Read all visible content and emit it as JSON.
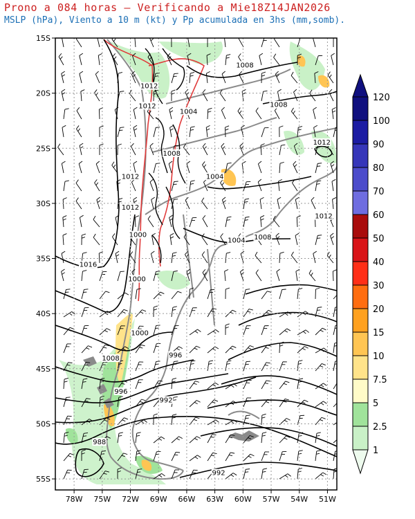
{
  "header": {
    "title": "Prono a 084 horas — Verificando a Mie18Z14JAN2026",
    "subtitle": "MSLP (hPa), Viento a 10 m (kt) y Pp acumulada en 3hs (mm,somb)."
  },
  "map": {
    "lat_labels": [
      "15S",
      "20S",
      "25S",
      "30S",
      "35S",
      "40S",
      "45S",
      "50S",
      "55S"
    ],
    "lon_labels": [
      "78W",
      "75W",
      "72W",
      "69W",
      "66W",
      "63W",
      "60W",
      "57W",
      "54W",
      "51W"
    ],
    "isobar_labels": [
      {
        "text": "1008",
        "lon": -59.8,
        "lat": -17.6
      },
      {
        "text": "1012",
        "lon": -70.0,
        "lat": -19.5
      },
      {
        "text": "1008",
        "lon": -56.2,
        "lat": -21.2
      },
      {
        "text": "1012",
        "lon": -70.2,
        "lat": -21.3
      },
      {
        "text": "1004",
        "lon": -65.8,
        "lat": -21.8
      },
      {
        "text": "1012",
        "lon": -51.6,
        "lat": -24.6
      },
      {
        "text": "1008",
        "lon": -67.6,
        "lat": -25.6
      },
      {
        "text": "1004",
        "lon": -63.0,
        "lat": -27.7
      },
      {
        "text": "1012",
        "lon": -72.0,
        "lat": -27.7
      },
      {
        "text": "1012",
        "lon": -72.0,
        "lat": -30.5
      },
      {
        "text": "1012",
        "lon": -51.4,
        "lat": -31.3
      },
      {
        "text": "1000",
        "lon": -71.2,
        "lat": -33.0
      },
      {
        "text": "1008",
        "lon": -57.9,
        "lat": -33.2
      },
      {
        "text": "1004",
        "lon": -60.7,
        "lat": -33.5
      },
      {
        "text": "1016",
        "lon": -76.5,
        "lat": -35.7
      },
      {
        "text": "1000",
        "lon": -71.3,
        "lat": -37.0
      },
      {
        "text": "1000",
        "lon": -71.0,
        "lat": -41.9
      },
      {
        "text": "996",
        "lon": -67.2,
        "lat": -43.9
      },
      {
        "text": "1008",
        "lon": -74.1,
        "lat": -44.2
      },
      {
        "text": "996",
        "lon": -73.0,
        "lat": -47.2
      },
      {
        "text": "992",
        "lon": -68.2,
        "lat": -48.0
      },
      {
        "text": "988",
        "lon": -75.3,
        "lat": -51.8
      },
      {
        "text": "992",
        "lon": -62.6,
        "lat": -54.6
      }
    ]
  },
  "colorbar": {
    "labels": [
      "1",
      "2.5",
      "5",
      "7.5",
      "10",
      "15",
      "20",
      "30",
      "40",
      "50",
      "60",
      "70",
      "80",
      "90",
      "100",
      "120"
    ],
    "colors": [
      "#eefbee",
      "#c9f1c7",
      "#a0e39b",
      "#fffbc8",
      "#ffe38a",
      "#ffc553",
      "#ffa11f",
      "#ff6d10",
      "#ff2f17",
      "#d91418",
      "#a90c0c",
      "#6f6de0",
      "#4c4ccb",
      "#3636b9",
      "#1c1ca3",
      "#10107f"
    ]
  }
}
